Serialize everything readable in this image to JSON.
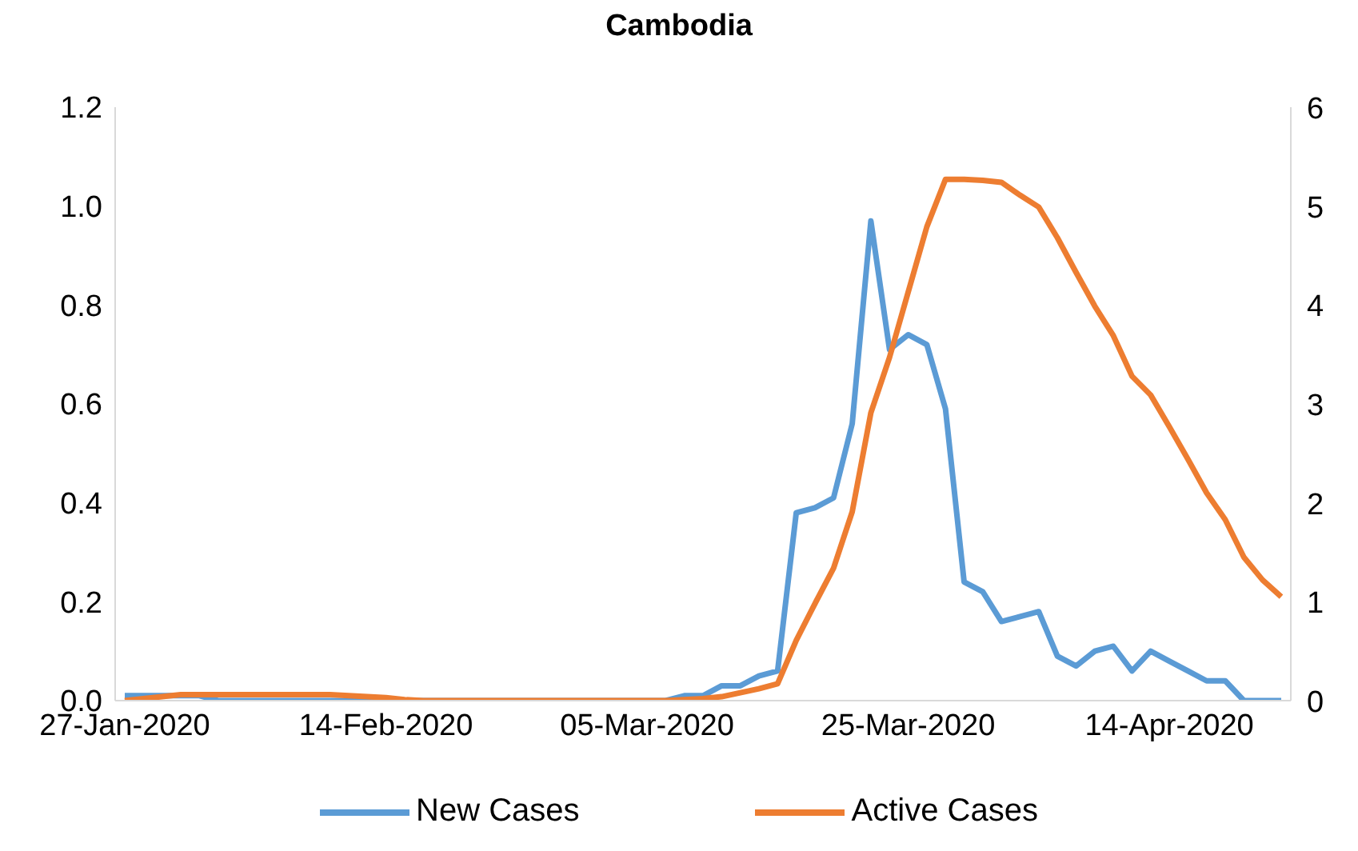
{
  "chart_data": {
    "type": "line",
    "title": "Cambodia",
    "categories": [
      "27-Jan-2020",
      null,
      null,
      null,
      null,
      null,
      null,
      null,
      null,
      null,
      null,
      null,
      null,
      null,
      "14-Feb-2020",
      null,
      null,
      null,
      null,
      null,
      null,
      null,
      null,
      null,
      null,
      null,
      null,
      null,
      "05-Mar-2020",
      null,
      null,
      null,
      null,
      null,
      null,
      null,
      null,
      null,
      null,
      null,
      null,
      null,
      "25-Mar-2020",
      null,
      null,
      null,
      null,
      null,
      null,
      null,
      null,
      null,
      null,
      null,
      null,
      null,
      "14-Apr-2020",
      null,
      null,
      null,
      null,
      null,
      null
    ],
    "series": [
      {
        "name": "New Cases",
        "color": "#5b9bd5",
        "values": [
          0.01,
          0.01,
          0.01,
          0.01,
          0.01,
          0,
          0,
          0,
          0,
          0,
          0,
          0,
          0,
          0,
          0,
          0,
          0,
          0,
          0,
          0,
          0,
          0,
          0,
          0,
          0,
          0,
          0,
          0,
          0,
          0,
          0.01,
          0.01,
          0.03,
          0.03,
          0.05,
          0.06,
          0.38,
          0.39,
          0.41,
          0.56,
          0.97,
          0.71,
          0.74,
          0.72,
          0.59,
          0.24,
          0.22,
          0.16,
          0.17,
          0.18,
          0.09,
          0.07,
          0.1,
          0.11,
          0.06,
          0.1,
          0.08,
          0.06,
          0.04,
          0.04,
          0,
          0,
          0
        ]
      },
      {
        "name": "Active Cases",
        "color": "#ed7d31",
        "axis": "y2",
        "values": [
          0,
          0.02,
          0.04,
          0.06,
          0.06,
          0.06,
          0.06,
          0.06,
          0.06,
          0.06,
          0.06,
          0.06,
          0.05,
          0.04,
          0.03,
          0.01,
          0,
          0,
          0,
          0,
          0,
          0,
          0,
          0,
          0,
          0,
          0,
          0,
          0,
          0,
          0.01,
          0.02,
          0.04,
          0.08,
          0.12,
          0.17,
          0.61,
          0.98,
          1.34,
          1.91,
          2.91,
          3.47,
          4.13,
          4.79,
          5.27,
          5.27,
          5.26,
          5.24,
          5.11,
          4.99,
          4.68,
          4.33,
          3.99,
          3.69,
          3.28,
          3.09,
          2.77,
          2.44,
          2.1,
          1.83,
          1.45,
          1.22,
          1.05
        ]
      }
    ],
    "ylim": [
      0,
      1.2
    ],
    "yticks": [
      {
        "value": 0,
        "label": "0.0"
      },
      {
        "value": 0.2,
        "label": "0.2"
      },
      {
        "value": 0.4,
        "label": "0.4"
      },
      {
        "value": 0.6,
        "label": "0.6"
      },
      {
        "value": 0.8,
        "label": "0.8"
      },
      {
        "value": 1,
        "label": "1.0"
      },
      {
        "value": 1.2,
        "label": "1.2"
      }
    ],
    "y2lim": [
      0,
      6
    ],
    "y2ticks": [
      0,
      1,
      2,
      3,
      4,
      5,
      6
    ],
    "legend": "bottom",
    "marker": "none"
  }
}
